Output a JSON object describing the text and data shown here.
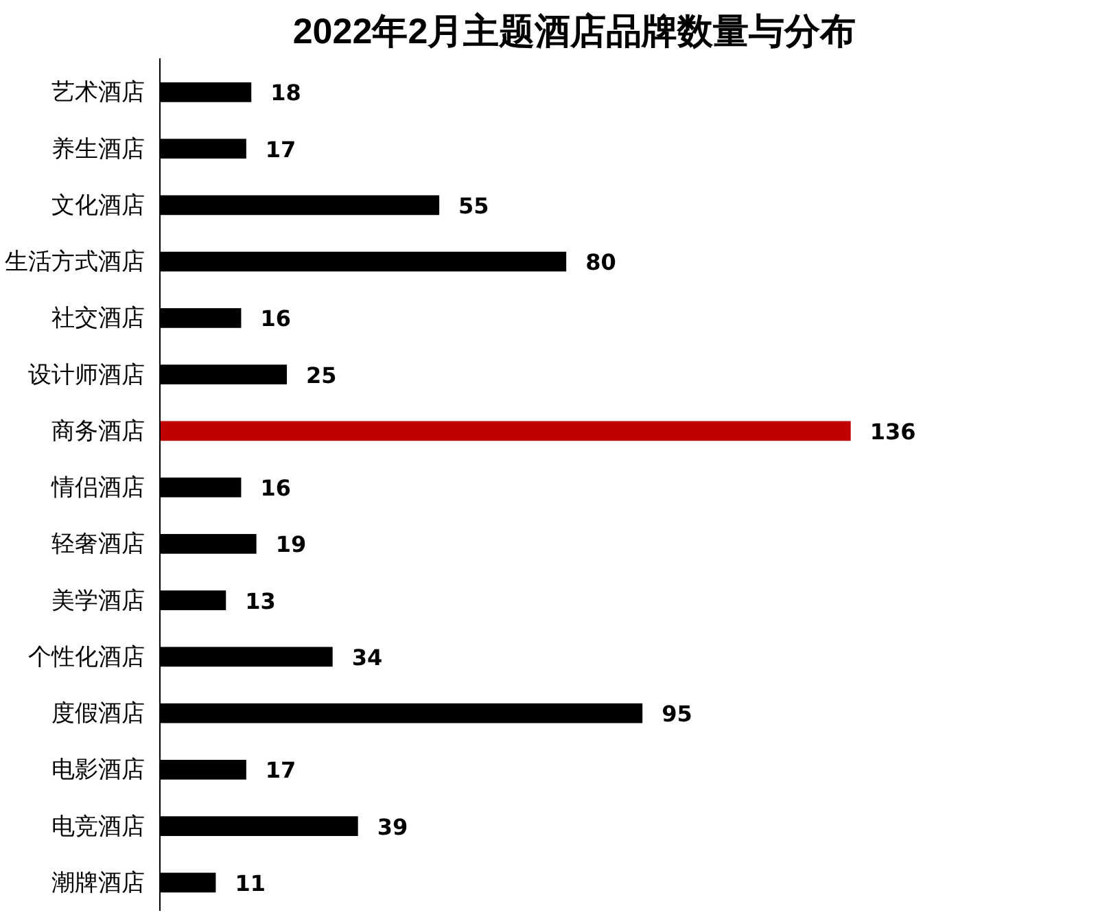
{
  "chart_data": {
    "type": "bar",
    "orientation": "horizontal",
    "title": "2022年2月主题酒店品牌数量与分布",
    "categories": [
      "艺术酒店",
      "养生酒店",
      "文化酒店",
      "生活方式酒店",
      "社交酒店",
      "设计师酒店",
      "商务酒店",
      "情侣酒店",
      "轻奢酒店",
      "美学酒店",
      "个性化酒店",
      "度假酒店",
      "电影酒店",
      "电竞酒店",
      "潮牌酒店"
    ],
    "values": [
      18,
      17,
      55,
      80,
      16,
      25,
      136,
      16,
      19,
      13,
      34,
      95,
      17,
      39,
      11
    ],
    "colors": [
      "#000000",
      "#000000",
      "#000000",
      "#000000",
      "#000000",
      "#000000",
      "#c00000",
      "#000000",
      "#000000",
      "#000000",
      "#000000",
      "#000000",
      "#000000",
      "#000000",
      "#000000"
    ],
    "data_labels": true,
    "grid": false
  }
}
